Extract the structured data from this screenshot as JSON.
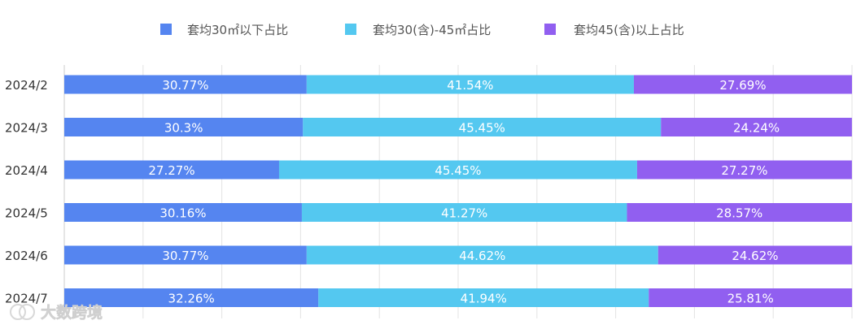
{
  "chart_data": {
    "type": "bar",
    "orientation": "horizontal",
    "stacked": true,
    "categories": [
      "2024/2",
      "2024/3",
      "2024/4",
      "2024/5",
      "2024/6",
      "2024/7"
    ],
    "series": [
      {
        "name": "套均30㎡以下占比",
        "color": "#5585f0",
        "values": [
          30.77,
          30.3,
          27.27,
          30.16,
          30.77,
          32.26
        ],
        "labels": [
          "30.77%",
          "30.3%",
          "27.27%",
          "30.16%",
          "30.77%",
          "32.26%"
        ]
      },
      {
        "name": "套均30(含)-45㎡占比",
        "color": "#54c8f0",
        "values": [
          41.54,
          45.45,
          45.45,
          41.27,
          44.62,
          41.94
        ],
        "labels": [
          "41.54%",
          "45.45%",
          "45.45%",
          "41.27%",
          "44.62%",
          "41.94%"
        ]
      },
      {
        "name": "套均45(含)以上占比",
        "color": "#915ff0",
        "values": [
          27.69,
          24.24,
          27.27,
          28.57,
          24.62,
          25.81
        ],
        "labels": [
          "27.69%",
          "24.24%",
          "27.27%",
          "28.57%",
          "24.62%",
          "25.81%"
        ]
      }
    ],
    "xlim": [
      0,
      100
    ],
    "grid": true,
    "legend": "top-center"
  },
  "watermark": {
    "text": "大数跨境"
  }
}
